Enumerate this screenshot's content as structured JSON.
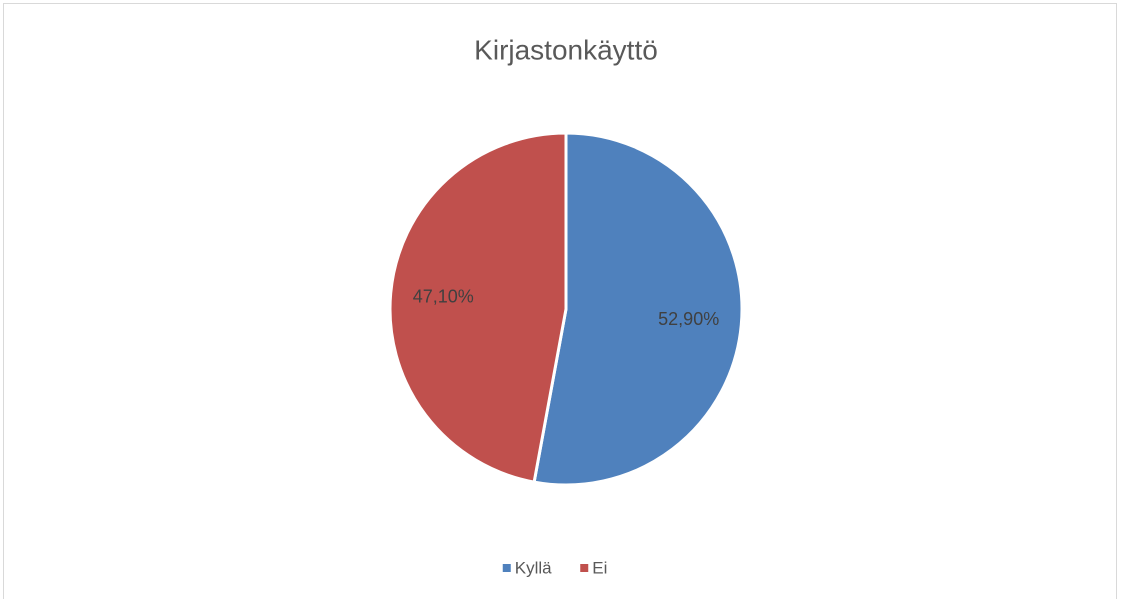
{
  "chart_data": {
    "type": "pie",
    "title": "Kirjastonkäyttö",
    "categories": [
      "Kyllä",
      "Ei"
    ],
    "values": [
      52.9,
      47.1
    ],
    "value_labels": [
      "52,90%",
      "47,10%"
    ],
    "colors": [
      "#4f81bd",
      "#c0504d"
    ],
    "legend": "bottom"
  }
}
